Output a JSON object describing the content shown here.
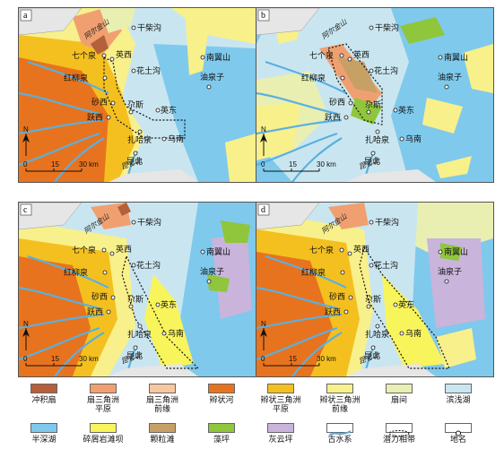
{
  "panels": [
    {
      "id": "a",
      "label": "a"
    },
    {
      "id": "b",
      "label": "b"
    },
    {
      "id": "c",
      "label": "c"
    },
    {
      "id": "d",
      "label": "d"
    }
  ],
  "places": {
    "gancaigou": "干柴沟",
    "qigequan": "七个泉",
    "yingxi": "英西",
    "huatugou": "花土沟",
    "nanyishan": "南翼山",
    "hongliuquan": "红柳泉",
    "youquanzi": "油泉子",
    "shaxi": "砂西",
    "yuejin": "跃西",
    "zhasi": "尕斯",
    "yingdong": "英东",
    "zhahaquan": "扎哈泉",
    "wunan": "乌南",
    "kunbei": "昆北"
  },
  "regions": {
    "aerjin": "阿尔金山",
    "kunlun": "昆仑山"
  },
  "scale": {
    "ticks": [
      "0",
      "15",
      "30 km"
    ]
  },
  "north": "N",
  "legend": [
    {
      "label": "冲积扇",
      "color": "#b5603a"
    },
    {
      "label": "扇三角洲\n平原",
      "color": "#f0a070"
    },
    {
      "label": "扇三角洲\n前缘",
      "color": "#f7c7a0"
    },
    {
      "label": "辫状河",
      "color": "#e8731e"
    },
    {
      "label": "辫状三角洲\n平原",
      "color": "#f4c020"
    },
    {
      "label": "辫状三角洲\n前缘",
      "color": "#f8f08a"
    },
    {
      "label": "扇间",
      "color": "#e9efb0"
    },
    {
      "label": "滨浅湖",
      "color": "#c9e6f0"
    },
    {
      "label": "半深湖",
      "color": "#7fc9ec"
    },
    {
      "label": "碎屑岩滩坝",
      "color": "#f8f45c"
    },
    {
      "label": "颗粒滩",
      "color": "#c7a066"
    },
    {
      "label": "藻坪",
      "color": "#8fc63c"
    },
    {
      "label": "灰云坪",
      "color": "#c9b4dc"
    },
    {
      "label": "古水系",
      "color": "#5ab0e0"
    },
    {
      "label": "潜力相带",
      "color": "#ffffff"
    },
    {
      "label": "地名",
      "color": "#ffffff"
    }
  ]
}
